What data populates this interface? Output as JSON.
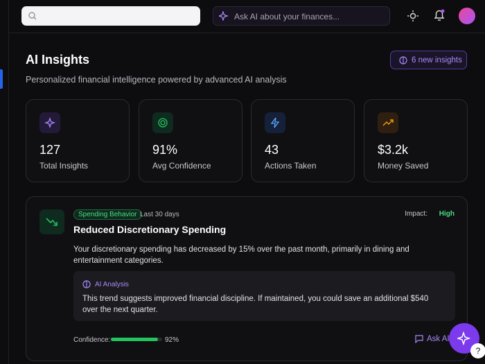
{
  "search_bar": {
    "placeholder": "Ask AI about your finances..."
  },
  "header": {
    "title": "AI Insights",
    "subtitle": "Personalized financial intelligence powered by advanced AI analysis",
    "badge": "6 new insights"
  },
  "stats": [
    {
      "value": "127",
      "label": "Total Insights"
    },
    {
      "value": "91%",
      "label": "Avg Confidence"
    },
    {
      "value": "43",
      "label": "Actions Taken"
    },
    {
      "value": "$3.2k",
      "label": "Money Saved"
    }
  ],
  "insight": {
    "tag": "Spending Behavior",
    "period": "Last 30 days",
    "impact_label": "Impact:",
    "impact": "High",
    "title": "Reduced Discretionary Spending",
    "description": "Your discretionary spending has decreased by 15% over the past month, primarily in dining and entertainment categories.",
    "analysis_title": "AI Analysis",
    "analysis": "This trend suggests improved financial discipline. If maintained, you could save an additional $540 over the next quarter.",
    "confidence_label": "Confidence:",
    "confidence": {
      "value": 92,
      "label": "92%"
    },
    "action": "Ask AI"
  },
  "help": "?"
}
